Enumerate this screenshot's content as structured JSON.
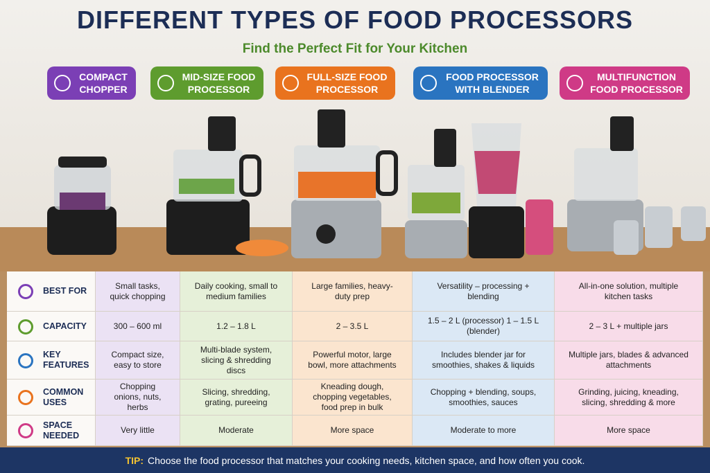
{
  "header": {
    "title": "DIFFERENT TYPES OF FOOD PROCESSORS",
    "subtitle": "Find the Perfect Fit for Your Kitchen"
  },
  "columns": [
    {
      "label": "COMPACT CHOPPER",
      "color": "#7b3fb5",
      "tint": "#ebe2f4"
    },
    {
      "label": "MID-SIZE FOOD PROCESSOR",
      "color": "#5e9c2e",
      "tint": "#e6f0d9"
    },
    {
      "label": "FULL-SIZE FOOD PROCESSOR",
      "color": "#e9731e",
      "tint": "#fbe5cf"
    },
    {
      "label": "FOOD PROCESSOR WITH BLENDER",
      "color": "#2a74c0",
      "tint": "#dbe8f5"
    },
    {
      "label": "MULTIFUNCTION FOOD PROCESSOR",
      "color": "#cf3a86",
      "tint": "#f8dce9"
    }
  ],
  "table": {
    "rows": [
      {
        "label": "BEST FOR",
        "color": "#7b3fb5",
        "cells": [
          "Small tasks, quick chopping",
          "Daily cooking, small to medium families",
          "Large families, heavy-duty prep",
          "Versatility – processing + blending",
          "All-in-one solution, multiple kitchen tasks"
        ]
      },
      {
        "label": "CAPACITY",
        "color": "#5e9c2e",
        "cells": [
          "300 – 600 ml",
          "1.2 – 1.8 L",
          "2 – 3.5 L",
          "1.5 – 2 L (processor) 1 – 1.5 L (blender)",
          "2 – 3 L + multiple jars"
        ]
      },
      {
        "label": "KEY FEATURES",
        "color": "#2a74c0",
        "cells": [
          "Compact size, easy to store",
          "Multi-blade system, slicing & shredding discs",
          "Powerful motor, large bowl, more attachments",
          "Includes blender jar for smoothies, shakes & liquids",
          "Multiple jars, blades & advanced attachments"
        ]
      },
      {
        "label": "COMMON USES",
        "color": "#e9731e",
        "cells": [
          "Chopping onions, nuts, herbs",
          "Slicing, shredding, grating, pureeing",
          "Kneading dough, chopping vegetables, food prep in bulk",
          "Chopping + blending, soups, smoothies, sauces",
          "Grinding, juicing, kneading, slicing, shredding & more"
        ]
      },
      {
        "label": "SPACE NEEDED",
        "color": "#cf3a86",
        "cells": [
          "Very little",
          "Moderate",
          "More space",
          "Moderate to more",
          "More space"
        ]
      }
    ]
  },
  "tip": {
    "label": "TIP:",
    "text": "Choose the food processor that matches your cooking needs, kitchen space, and how often you cook."
  }
}
